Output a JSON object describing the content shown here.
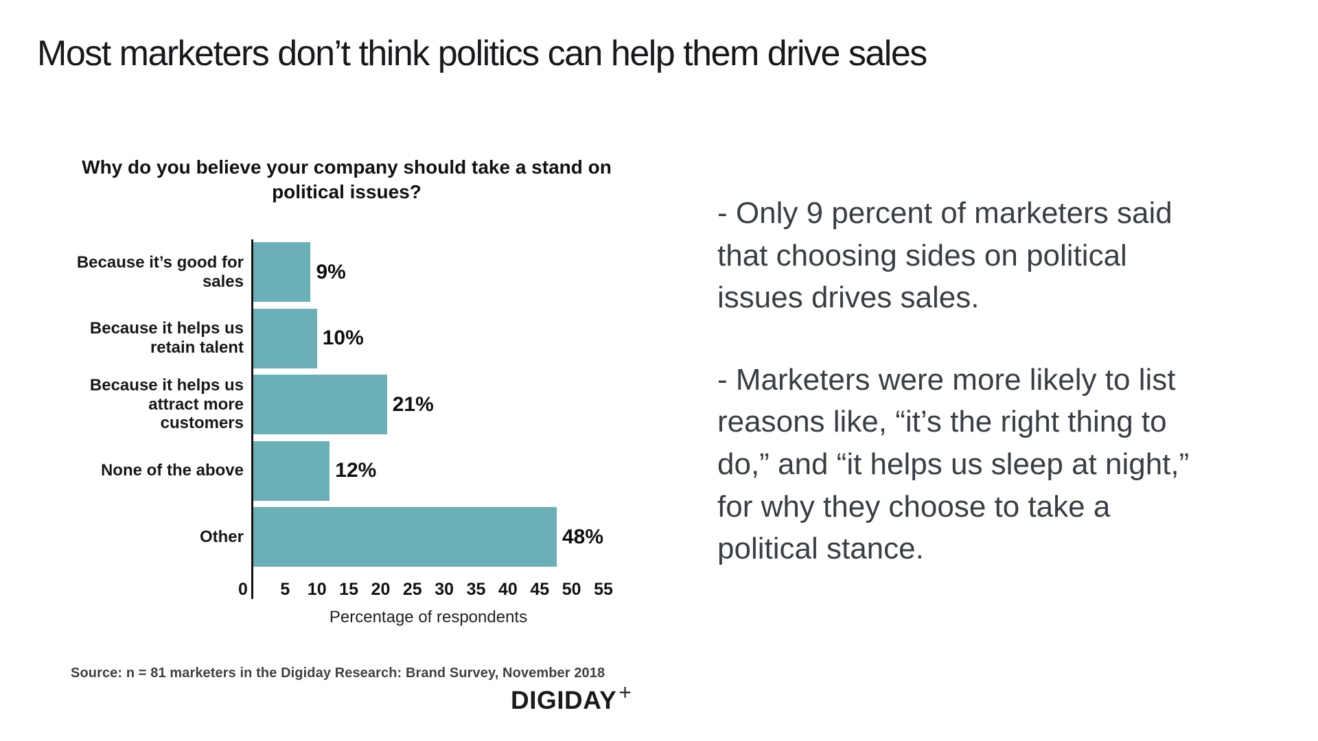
{
  "slide": {
    "title": "Most marketers don’t think politics can help them drive sales"
  },
  "chart_data": {
    "type": "bar",
    "orientation": "horizontal",
    "title": "Why do you believe your company should take a stand on\npolitical issues?",
    "categories": [
      "Because it’s good for\nsales",
      "Because it helps us\nretain talent",
      "Because it helps us\nattract more\ncustomers",
      "None of the above",
      "Other"
    ],
    "values": [
      9,
      10,
      21,
      12,
      48
    ],
    "value_labels": [
      "9%",
      "10%",
      "21%",
      "12%",
      "48%"
    ],
    "xlabel": "Percentage of respondents",
    "xlim": [
      0,
      55
    ],
    "x_ticks": [
      0,
      5,
      10,
      15,
      20,
      25,
      30,
      35,
      40,
      45,
      50,
      55
    ],
    "bar_color": "#6bb0b6",
    "axis_color": "#111111",
    "grid": false,
    "legend": "none"
  },
  "notes": {
    "bullet1": "- Only 9 percent of marketers said\nthat choosing sides on political\nissues drives sales.",
    "bullet2": "- Marketers were more likely to list\nreasons like, “it’s the right thing to\ndo,” and “it helps us sleep at night,”\nfor why they choose to take a\npolitical stance."
  },
  "footer": {
    "source": "Source: n = 81 marketers in the Digiday Research: Brand Survey, November 2018",
    "logo_text": "DIGIDAY",
    "logo_plus": "+"
  }
}
